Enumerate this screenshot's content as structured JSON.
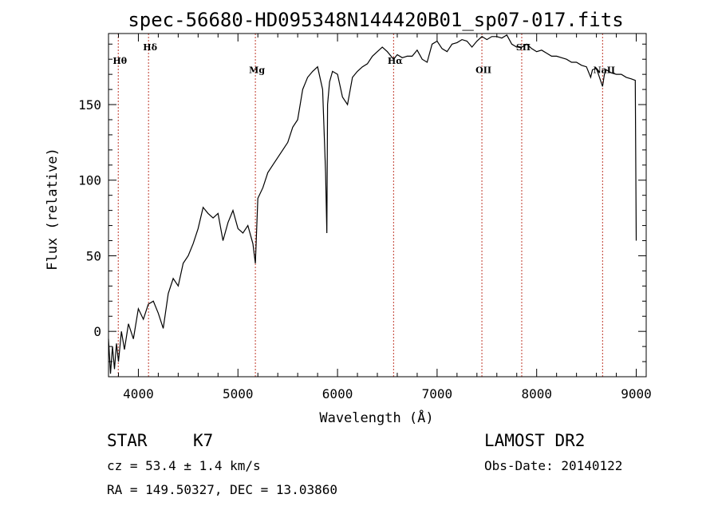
{
  "chart_data": {
    "type": "line",
    "title": "spec-56680-HD095348N144420B01_sp07-017.fits",
    "xlabel": "Wavelength (Å)",
    "ylabel": "Flux (relative)",
    "xlim": [
      3700,
      9100
    ],
    "ylim": [
      -30,
      197
    ],
    "x_ticks": [
      4000,
      5000,
      6000,
      7000,
      8000,
      9000
    ],
    "y_ticks": [
      0,
      50,
      100,
      150
    ],
    "grid": false,
    "series": [
      {
        "x": [
          3700,
          3720,
          3740,
          3760,
          3780,
          3800,
          3830,
          3860,
          3900,
          3950,
          4000,
          4050,
          4100,
          4150,
          4200,
          4250,
          4300,
          4350,
          4400,
          4450,
          4500,
          4550,
          4600,
          4650,
          4700,
          4750,
          4800,
          4850,
          4900,
          4950,
          5000,
          5050,
          5100,
          5150,
          5175,
          5200,
          5250,
          5300,
          5350,
          5400,
          5450,
          5500,
          5550,
          5600,
          5650,
          5700,
          5750,
          5800,
          5850,
          5880,
          5893,
          5900,
          5920,
          5950,
          6000,
          6050,
          6100,
          6150,
          6200,
          6250,
          6300,
          6350,
          6400,
          6450,
          6500,
          6563,
          6600,
          6650,
          6700,
          6750,
          6800,
          6850,
          6900,
          6950,
          7000,
          7050,
          7100,
          7150,
          7200,
          7250,
          7300,
          7350,
          7400,
          7450,
          7500,
          7550,
          7600,
          7650,
          7700,
          7750,
          7800,
          7850,
          7900,
          7950,
          8000,
          8050,
          8100,
          8150,
          8200,
          8250,
          8300,
          8350,
          8400,
          8450,
          8500,
          8542,
          8560,
          8600,
          8662,
          8680,
          8700,
          8750,
          8800,
          8850,
          8900,
          8950,
          8990,
          9000
        ],
        "y": [
          -5,
          -28,
          -10,
          -25,
          -8,
          -20,
          0,
          -12,
          5,
          -5,
          15,
          8,
          18,
          20,
          12,
          2,
          25,
          35,
          30,
          45,
          50,
          58,
          68,
          82,
          78,
          75,
          78,
          60,
          72,
          80,
          68,
          65,
          70,
          58,
          45,
          88,
          95,
          105,
          110,
          115,
          120,
          125,
          135,
          140,
          160,
          168,
          172,
          175,
          160,
          105,
          65,
          150,
          165,
          172,
          170,
          155,
          150,
          168,
          172,
          175,
          177,
          182,
          185,
          188,
          185,
          180,
          183,
          181,
          182,
          182,
          186,
          180,
          178,
          190,
          192,
          187,
          185,
          190,
          191,
          193,
          192,
          188,
          192,
          195,
          193,
          195,
          195,
          194,
          196,
          190,
          188,
          188,
          190,
          187,
          185,
          186,
          184,
          182,
          182,
          181,
          180,
          178,
          178,
          176,
          175,
          168,
          173,
          174,
          162,
          170,
          173,
          171,
          170,
          170,
          168,
          167,
          166,
          60
        ]
      }
    ],
    "line_markers": [
      {
        "label": "Hθ",
        "x": 3798,
        "y": 177
      },
      {
        "label": "Hδ",
        "x": 4102,
        "y": 186
      },
      {
        "label": "Mg",
        "x": 5175,
        "y": 171
      },
      {
        "label": "Hα",
        "x": 6563,
        "y": 177
      },
      {
        "label": "OII",
        "x": 7450,
        "y": 171
      },
      {
        "label": "SII",
        "x": 7850,
        "y": 186
      },
      {
        "label": "NaII",
        "x": 8662,
        "y": 171
      }
    ]
  },
  "info": {
    "object_class": "STAR",
    "subclass": "K7",
    "survey": "LAMOST DR2",
    "redshift_line": "cz = 53.4 ± 1.4 km/s",
    "obs_date_line": "Obs-Date: 20140122",
    "coords_line": "RA = 149.50327, DEC =  13.03860"
  },
  "colors": {
    "spectrum": "#000000",
    "marker_line": "#c0392b"
  }
}
